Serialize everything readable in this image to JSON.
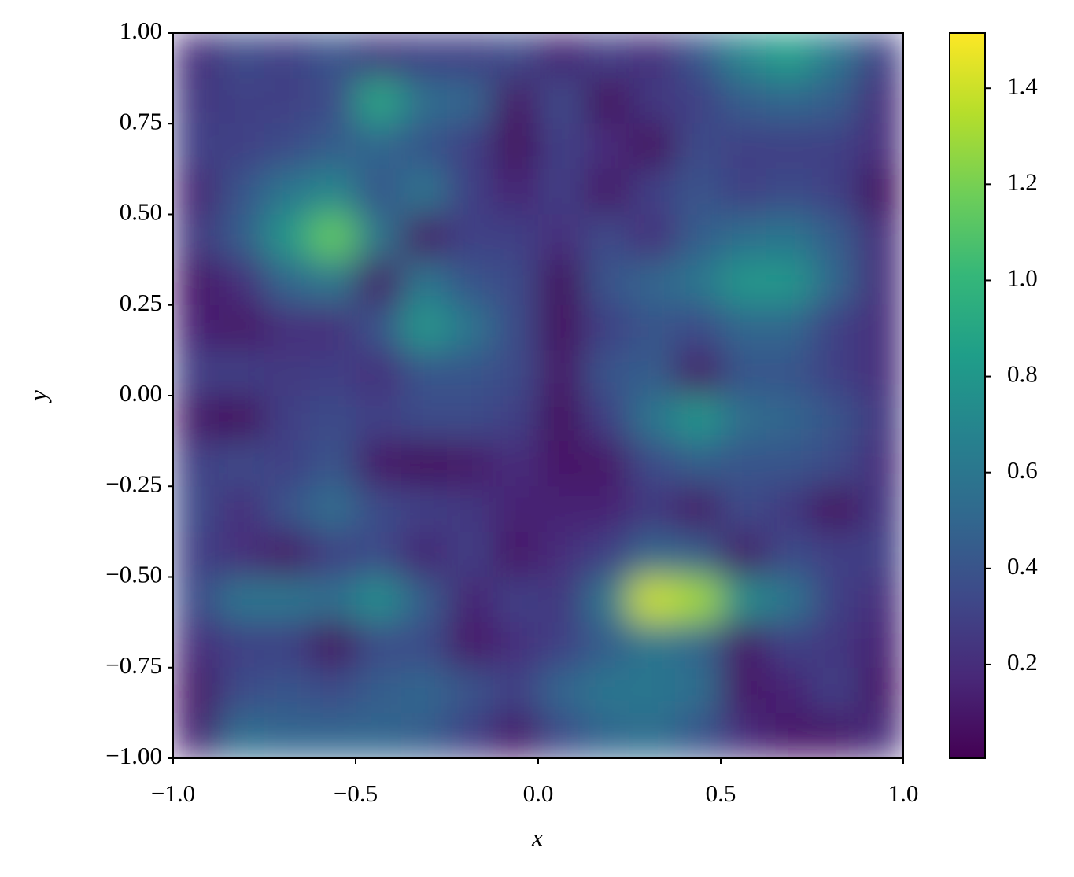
{
  "chart_data": {
    "type": "heatmap",
    "x_label": "x",
    "y_label": "y",
    "xlim": [
      -1,
      1
    ],
    "ylim": [
      -1,
      1
    ],
    "xticks": [
      {
        "value": -1,
        "label": "−1.0"
      },
      {
        "value": -0.5,
        "label": "−0.5"
      },
      {
        "value": 0,
        "label": "0.0"
      },
      {
        "value": 0.5,
        "label": "0.5"
      },
      {
        "value": 1,
        "label": "1.0"
      }
    ],
    "yticks": [
      {
        "value": -1,
        "label": "−1.00"
      },
      {
        "value": -0.75,
        "label": "−0.75"
      },
      {
        "value": -0.5,
        "label": "−0.50"
      },
      {
        "value": -0.25,
        "label": "−0.25"
      },
      {
        "value": 0,
        "label": "0.00"
      },
      {
        "value": 0.25,
        "label": "0.25"
      },
      {
        "value": 0.5,
        "label": "0.50"
      },
      {
        "value": 0.75,
        "label": "0.75"
      },
      {
        "value": 1,
        "label": "1.00"
      }
    ],
    "zlim": [
      0.005,
      1.515
    ],
    "zticks": [
      0.2,
      0.4,
      0.6,
      0.8,
      {
        "value": 1,
        "label": "1.0"
      },
      1.2,
      1.4
    ],
    "colormap": [
      "#440154",
      "#482878",
      "#3e4989",
      "#31688e",
      "#26828e",
      "#1f9e89",
      "#35b779",
      "#6ece58",
      "#b5de2b",
      "#fde725"
    ],
    "z": [
      [
        0.2,
        0.35,
        0.3,
        0.4,
        0.25,
        0.3,
        0.3,
        0.35,
        0.15,
        0.3,
        0.2,
        0.4,
        0.7,
        0.85,
        0.6,
        0.3
      ],
      [
        0.25,
        0.3,
        0.3,
        0.35,
        0.9,
        0.55,
        0.5,
        0.1,
        0.35,
        0.05,
        0.25,
        0.3,
        0.45,
        0.5,
        0.45,
        0.2
      ],
      [
        0.3,
        0.3,
        0.35,
        0.45,
        0.5,
        0.4,
        0.3,
        0.05,
        0.3,
        0.2,
        0.05,
        0.35,
        0.3,
        0.3,
        0.3,
        0.2
      ],
      [
        0.15,
        0.4,
        0.6,
        0.7,
        0.4,
        0.6,
        0.3,
        0.15,
        0.3,
        0.1,
        0.3,
        0.4,
        0.3,
        0.35,
        0.3,
        0.05
      ],
      [
        0.25,
        0.45,
        0.8,
        1.15,
        0.6,
        0.1,
        0.3,
        0.3,
        0.2,
        0.35,
        0.2,
        0.45,
        0.55,
        0.6,
        0.45,
        0.2
      ],
      [
        0.1,
        0.2,
        0.5,
        0.6,
        0.1,
        0.6,
        0.4,
        0.35,
        0.05,
        0.4,
        0.5,
        0.6,
        0.8,
        0.8,
        0.5,
        0.2
      ],
      [
        0.15,
        0.1,
        0.2,
        0.2,
        0.4,
        0.8,
        0.6,
        0.35,
        0.05,
        0.3,
        0.4,
        0.35,
        0.5,
        0.5,
        0.3,
        0.2
      ],
      [
        0.3,
        0.3,
        0.25,
        0.3,
        0.2,
        0.4,
        0.4,
        0.35,
        0.1,
        0.4,
        0.45,
        0.1,
        0.4,
        0.4,
        0.3,
        0.2
      ],
      [
        0.1,
        0.05,
        0.3,
        0.35,
        0.3,
        0.35,
        0.35,
        0.3,
        0.05,
        0.3,
        0.6,
        0.8,
        0.55,
        0.5,
        0.4,
        0.25
      ],
      [
        0.3,
        0.35,
        0.3,
        0.4,
        0.1,
        0.05,
        0.1,
        0.2,
        0.1,
        0.1,
        0.35,
        0.45,
        0.4,
        0.4,
        0.35,
        0.2
      ],
      [
        0.35,
        0.2,
        0.4,
        0.55,
        0.35,
        0.3,
        0.25,
        0.15,
        0.15,
        0.15,
        0.25,
        0.1,
        0.35,
        0.25,
        0.05,
        0.25
      ],
      [
        0.3,
        0.2,
        0.1,
        0.3,
        0.35,
        0.15,
        0.3,
        0.1,
        0.2,
        0.3,
        0.5,
        0.45,
        0.1,
        0.35,
        0.3,
        0.3
      ],
      [
        0.35,
        0.6,
        0.6,
        0.55,
        0.75,
        0.45,
        0.15,
        0.3,
        0.25,
        0.6,
        1.4,
        1.3,
        0.75,
        0.6,
        0.3,
        0.2
      ],
      [
        0.2,
        0.3,
        0.3,
        0.05,
        0.35,
        0.35,
        0.1,
        0.2,
        0.3,
        0.45,
        0.6,
        0.5,
        0.1,
        0.3,
        0.25,
        0.15
      ],
      [
        0.1,
        0.35,
        0.4,
        0.35,
        0.45,
        0.5,
        0.4,
        0.3,
        0.5,
        0.6,
        0.6,
        0.55,
        0.1,
        0.15,
        0.3,
        0.1
      ],
      [
        0.15,
        0.55,
        0.5,
        0.5,
        0.5,
        0.45,
        0.3,
        0.1,
        0.35,
        0.5,
        0.55,
        0.4,
        0.2,
        0.1,
        0.1,
        0.2
      ]
    ]
  }
}
